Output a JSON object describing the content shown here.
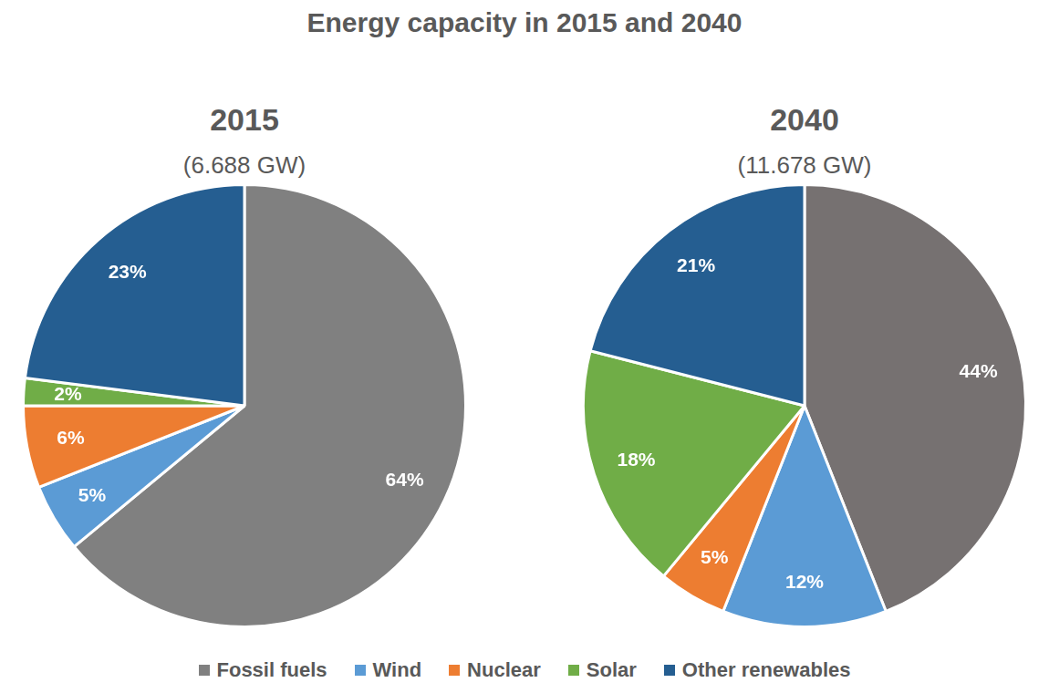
{
  "title": "Energy capacity in 2015 and 2040",
  "chart_data": [
    {
      "type": "pie",
      "title": "2015",
      "subtitle": "(6.688 GW)",
      "categories": [
        "Fossil fuels",
        "Wind",
        "Nuclear",
        "Solar",
        "Other renewables"
      ],
      "values": [
        64,
        5,
        6,
        2,
        23
      ],
      "value_labels": [
        "64%",
        "5%",
        "6%",
        "2%",
        "23%"
      ],
      "colors": [
        "#808080",
        "#5b9bd5",
        "#ed7d31",
        "#70ad47",
        "#255e91"
      ],
      "data_labels": true,
      "legend": "bottom"
    },
    {
      "type": "pie",
      "title": "2040",
      "subtitle": "(11.678 GW)",
      "categories": [
        "Fossil fuels",
        "Wind",
        "Nuclear",
        "Solar",
        "Other renewables"
      ],
      "values": [
        44,
        12,
        5,
        18,
        21
      ],
      "value_labels": [
        "44%",
        "12%",
        "5%",
        "18%",
        "21%"
      ],
      "colors": [
        "#767171",
        "#5b9bd5",
        "#ed7d31",
        "#70ad47",
        "#255e91"
      ],
      "data_labels": true,
      "legend": "bottom"
    }
  ]
}
